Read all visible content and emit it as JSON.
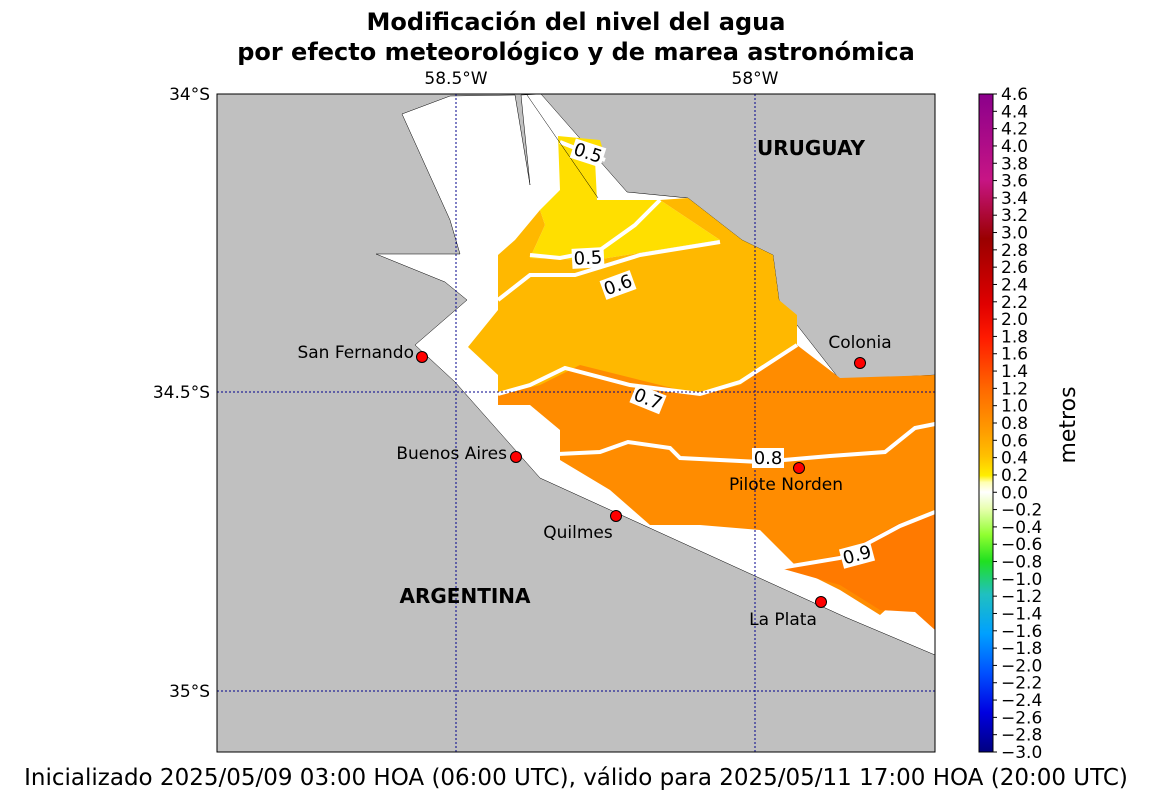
{
  "title": {
    "line1": "Modificación del nivel del agua",
    "line2": "por efecto meteorológico y de marea astronómica"
  },
  "footer": "Inicializado 2025/05/09 03:00 HOA (06:00 UTC), válido para 2025/05/11 17:00 HOA (20:00 UTC)",
  "axes": {
    "lon_ticks": [
      "58.5°W",
      "58°W"
    ],
    "lat_ticks": [
      "34°S",
      "34.5°S",
      "35°S"
    ]
  },
  "countries": [
    "URUGUAY",
    "ARGENTINA"
  ],
  "places": [
    "San Fernando",
    "Colonia",
    "Buenos Aires",
    "Pilote Norden",
    "Quilmes",
    "La Plata"
  ],
  "contour_labels": [
    "0.5",
    "0.5",
    "0.6",
    "0.7",
    "0.8",
    "0.9"
  ],
  "colorbar": {
    "label": "metros",
    "ticks": [
      "4.6",
      "4.4",
      "4.2",
      "4.0",
      "3.8",
      "3.6",
      "3.4",
      "3.2",
      "3.0",
      "2.8",
      "2.6",
      "2.4",
      "2.2",
      "2.0",
      "1.8",
      "1.6",
      "1.4",
      "1.2",
      "1.0",
      "0.8",
      "0.6",
      "0.4",
      "0.2",
      "0.0",
      "−0.2",
      "−0.4",
      "−0.6",
      "−0.8",
      "−1.0",
      "−1.2",
      "−1.4",
      "−1.6",
      "−1.8",
      "−2.0",
      "−2.2",
      "−2.4",
      "−2.6",
      "−2.8",
      "−3.0"
    ]
  },
  "colors": {
    "land": "#c0c0c0",
    "level_04_05": "#ffdf00",
    "level_05_07": "#ffb800",
    "level_07_09": "#ff8c00",
    "level_09_10": "#ff7a00",
    "station": "#ff0000"
  }
}
